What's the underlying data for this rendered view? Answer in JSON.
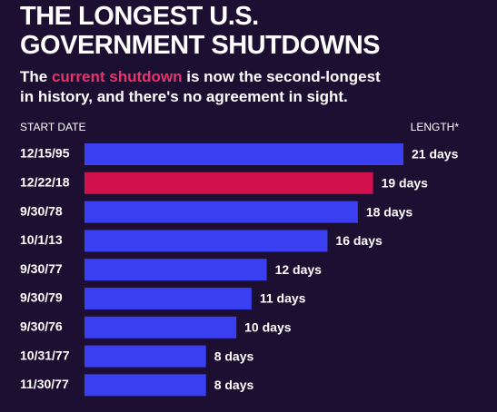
{
  "chart_data": {
    "type": "bar",
    "orientation": "horizontal",
    "title": [
      "THE LONGEST U.S.",
      "GOVERNMENT SHUTDOWNS"
    ],
    "subtitle": [
      "The ",
      "current shutdown",
      " is now the second-longest",
      "in history, and there's no agreement in sight."
    ],
    "subtitle_highlight_color": "#e8336b",
    "category_header": "START DATE",
    "value_header": "LENGTH*",
    "categories": [
      "12/15/95",
      "12/22/18",
      "9/30/78",
      "10/1/13",
      "9/30/77",
      "9/30/79",
      "9/30/76",
      "10/31/77",
      "11/30/77"
    ],
    "values": [
      21,
      19,
      18,
      16,
      12,
      11,
      10,
      8,
      8
    ],
    "value_labels": [
      "21 days",
      "19 days",
      "18 days",
      "16 days",
      "12 days",
      "11 days",
      "10 days",
      "8 days",
      "8 days"
    ],
    "colors": [
      "#3a3ff2",
      "#d1114e",
      "#3a3ff2",
      "#3a3ff2",
      "#3a3ff2",
      "#3a3ff2",
      "#3a3ff2",
      "#3a3ff2",
      "#3a3ff2"
    ]
  }
}
